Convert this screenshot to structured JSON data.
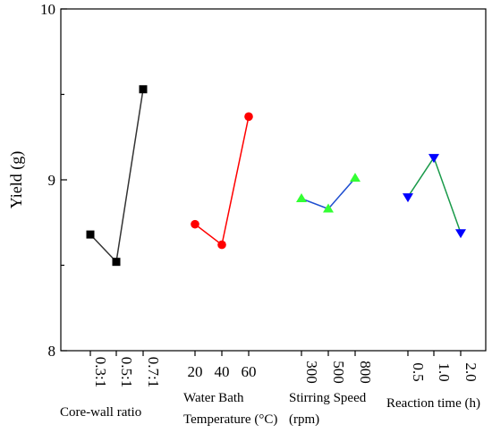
{
  "chart_data": {
    "type": "line",
    "ylabel": "Yield (g)",
    "ylim": [
      8,
      10
    ],
    "yticks": [
      "8",
      "9",
      "10"
    ],
    "grid": false,
    "series": [
      {
        "name": "Core-wall ratio",
        "categories": [
          "0.3:1",
          "0.5:1",
          "0.7:1"
        ],
        "values": [
          8.68,
          8.52,
          9.53
        ],
        "marker": "square",
        "marker_color": "#000000",
        "line_color": "#333333",
        "tick_rotated": true
      },
      {
        "name": "Water Bath Temperature (°C)",
        "categories": [
          "20",
          "40",
          "60"
        ],
        "values": [
          8.74,
          8.62,
          9.37
        ],
        "marker": "circle",
        "marker_color": "#ff0000",
        "line_color": "#ff0000",
        "tick_rotated": false
      },
      {
        "name": "Stirring Speed (rpm)",
        "categories": [
          "300",
          "500",
          "800"
        ],
        "values": [
          8.89,
          8.83,
          9.01
        ],
        "marker": "triangle-up",
        "marker_color": "#33ff33",
        "line_color": "#1f4fd0",
        "tick_rotated": true
      },
      {
        "name": "Reaction time (h)",
        "categories": [
          "0.5",
          "1.0",
          "2.0"
        ],
        "values": [
          8.9,
          9.13,
          8.69
        ],
        "marker": "triangle-down",
        "marker_color": "#0000ff",
        "line_color": "#1a9a4a",
        "tick_rotated": true
      }
    ],
    "group_labels": [
      [
        "Core-wall ratio"
      ],
      [
        "Water Bath",
        "Temperature (°C)"
      ],
      [
        "Stirring Speed",
        "(rpm)"
      ],
      [
        "Reaction time (h)"
      ]
    ]
  }
}
